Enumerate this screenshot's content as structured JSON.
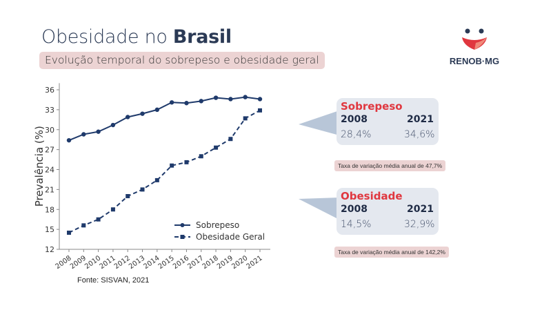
{
  "header": {
    "title_light": "Obesidade no ",
    "title_bold": "Brasil",
    "subtitle": "Evolução temporal do sobrepeso e obesidade geral"
  },
  "logo": {
    "text": "RENOB·MG"
  },
  "source": "Fonte: SISVAN, 2021",
  "colors": {
    "line": "#1f3a6b",
    "accent_red": "#e0373f",
    "note_bg": "#ecd3d3",
    "callout_bg": "#e4e8ef"
  },
  "chart_data": {
    "type": "line",
    "ylabel": "Prevalência (%)",
    "xlabel": "",
    "ylim": [
      12,
      37
    ],
    "yticks": [
      12,
      15,
      18,
      21,
      24,
      27,
      30,
      33,
      36
    ],
    "x": [
      "2008",
      "2009",
      "2010",
      "2011",
      "2012",
      "2013",
      "2014",
      "2015",
      "2016",
      "2017",
      "2018",
      "2019",
      "2020",
      "2021"
    ],
    "series": [
      {
        "name": "Sobrepeso",
        "style": "solid-circle",
        "values": [
          28.4,
          29.3,
          29.7,
          30.7,
          31.9,
          32.4,
          33.0,
          34.1,
          34.0,
          34.3,
          34.8,
          34.6,
          34.9,
          34.6
        ]
      },
      {
        "name": "Obesidade Geral",
        "style": "dashed-square",
        "values": [
          14.5,
          15.6,
          16.5,
          18.0,
          20.0,
          21.0,
          22.4,
          24.6,
          25.1,
          26.0,
          27.3,
          28.6,
          31.7,
          32.9
        ]
      }
    ],
    "legend_position": "bottom-right"
  },
  "callouts": [
    {
      "title": "Sobrepeso",
      "year_a": "2008",
      "year_b": "2021",
      "value_a": "28,4%",
      "value_b": "34,6%",
      "note": "Taxa de variação média anual de 47,7%"
    },
    {
      "title": "Obesidade",
      "year_a": "2008",
      "year_b": "2021",
      "value_a": "14,5%",
      "value_b": "32,9%",
      "note": "Taxa de variação média anual de 142,2%"
    }
  ]
}
